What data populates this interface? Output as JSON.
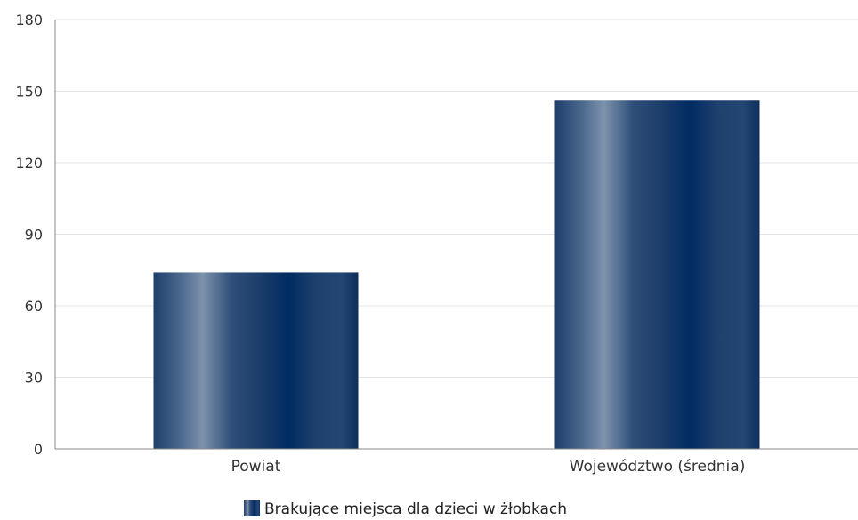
{
  "chart_data": {
    "type": "bar",
    "categories": [
      "Powiat",
      "Województwo (średnia)"
    ],
    "series": [
      {
        "name": "Brakujące miejsca dla dzieci w żłobkach",
        "values": [
          74,
          146
        ]
      }
    ],
    "ylim": [
      0,
      180
    ],
    "yticks": [
      0,
      30,
      60,
      90,
      120,
      150,
      180
    ],
    "grid": true,
    "legend_position": "bottom",
    "colors": {
      "bar_dark": "#0a2d5e",
      "bar_light": "#7d93ad",
      "grid": "#e3e3e3",
      "axis": "#8a8a8a"
    }
  }
}
